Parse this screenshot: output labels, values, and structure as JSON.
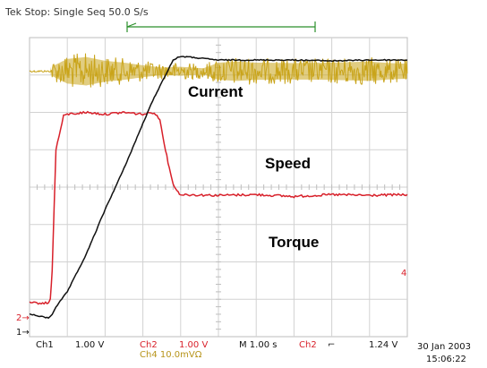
{
  "chart_data": {
    "type": "line",
    "header": "Tek Stop: Single Seq 50.0 S/s",
    "labels": {
      "current": "Current",
      "speed": "Speed",
      "torque": "Torque"
    },
    "grid": {
      "divisions_x": 10,
      "divisions_y": 8
    },
    "series": [
      {
        "name": "Current",
        "color": "#c9a41a",
        "envelope": [
          [
            0.0,
            0.9,
            0.9
          ],
          [
            0.55,
            0.9,
            0.9
          ],
          [
            0.6,
            0.65,
            1.15
          ],
          [
            1.0,
            0.45,
            1.35
          ],
          [
            1.5,
            0.4,
            1.4
          ],
          [
            2.0,
            0.5,
            1.3
          ],
          [
            2.5,
            0.55,
            1.25
          ],
          [
            3.0,
            0.62,
            1.18
          ],
          [
            3.5,
            0.68,
            1.12
          ],
          [
            4.0,
            0.66,
            1.14
          ],
          [
            4.6,
            0.7,
            1.1
          ],
          [
            5.0,
            0.55,
            1.25
          ],
          [
            5.5,
            0.52,
            1.28
          ],
          [
            6.0,
            0.55,
            1.25
          ],
          [
            7.0,
            0.56,
            1.24
          ],
          [
            8.0,
            0.55,
            1.25
          ],
          [
            9.0,
            0.52,
            1.28
          ],
          [
            9.5,
            0.56,
            1.24
          ],
          [
            10.0,
            0.58,
            1.22
          ]
        ]
      },
      {
        "name": "Speed",
        "color": "#111111",
        "x": [
          0,
          0.5,
          0.6,
          0.7,
          1.0,
          1.5,
          2.0,
          2.5,
          3.0,
          3.3,
          3.6,
          3.8,
          4.0,
          4.5,
          5.0,
          6.0,
          7.0,
          8.0,
          9.0,
          10.0
        ],
        "y": [
          7.4,
          7.5,
          7.4,
          7.2,
          6.8,
          5.8,
          4.6,
          3.5,
          2.3,
          1.6,
          1.0,
          0.6,
          0.5,
          0.55,
          0.6,
          0.6,
          0.6,
          0.62,
          0.6,
          0.6
        ]
      },
      {
        "name": "Torque",
        "color": "#d8202a",
        "x": [
          0,
          0.5,
          0.55,
          0.6,
          0.7,
          0.9,
          1.0,
          1.5,
          2.0,
          2.5,
          3.0,
          3.3,
          3.45,
          3.6,
          3.7,
          3.8,
          3.9,
          4.0,
          5.0,
          6.0,
          7.0,
          8.0,
          9.0,
          10.0
        ],
        "y": [
          7.1,
          7.1,
          7.0,
          6.2,
          3.0,
          2.1,
          2.05,
          2.0,
          2.05,
          2.0,
          2.05,
          2.0,
          2.2,
          3.0,
          3.5,
          3.9,
          4.1,
          4.2,
          4.22,
          4.2,
          4.25,
          4.2,
          4.22,
          4.2
        ]
      }
    ],
    "markers": {
      "ch1": "1→",
      "ch2": "2→",
      "ref": "4"
    },
    "readouts": {
      "ch1": "Ch1",
      "ch1_scale": "1.00 V",
      "ch2": "Ch2",
      "ch2_scale": "1.00 V",
      "ch2_sub": "Ch4 10.0mVΩ",
      "time": "M 1.00 s",
      "trig_ch": "Ch2",
      "trig_sym": "⌐",
      "trig_level": "1.24 V",
      "date": "30 Jan 2003",
      "time_of_day": "15:06:22"
    }
  }
}
